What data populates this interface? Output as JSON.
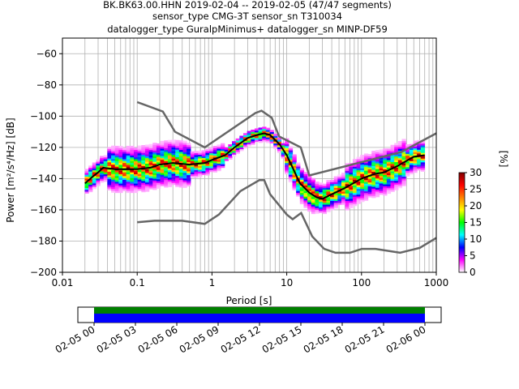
{
  "title_lines": [
    "BK.BK63.00.HHN   2019-02-04 -- 2019-02-05  (47/47 segments)",
    "sensor_type CMG-3T sensor_sn T310034",
    "datalogger_type GuralpMinimus+ datalogger_sn MINP-DF59"
  ],
  "chart_data": [
    {
      "type": "heatmap",
      "xlabel": "Period [s]",
      "ylabel": "Power [m²/s⁴/Hz] [dB]",
      "xscale": "log",
      "xlim": [
        0.01,
        1000
      ],
      "ylim": [
        -200,
        -50
      ],
      "x_ticks": [
        0.01,
        0.1,
        1,
        10,
        100,
        1000
      ],
      "x_tick_labels": [
        "0.01",
        "0.1",
        "1",
        "10",
        "100",
        "1000"
      ],
      "y_ticks": [
        -200,
        -180,
        -160,
        -140,
        -120,
        -100,
        -80,
        -60
      ],
      "y_tick_labels": [
        "−200",
        "−180",
        "−160",
        "−140",
        "−120",
        "−100",
        "−80",
        "−60"
      ],
      "grid": true,
      "noise_model_high": [
        [
          0.1,
          -91
        ],
        [
          0.22,
          -97
        ],
        [
          0.32,
          -110
        ],
        [
          0.8,
          -120
        ],
        [
          3.8,
          -98
        ],
        [
          4.6,
          -96.5
        ],
        [
          6.3,
          -101
        ],
        [
          7.9,
          -113
        ],
        [
          15.4,
          -120
        ],
        [
          20,
          -138
        ],
        [
          340,
          -123
        ],
        [
          1000,
          -111
        ]
      ],
      "noise_model_low": [
        [
          0.1,
          -168
        ],
        [
          0.17,
          -167
        ],
        [
          0.4,
          -167
        ],
        [
          0.8,
          -169
        ],
        [
          1.24,
          -163
        ],
        [
          2.4,
          -148
        ],
        [
          4.3,
          -141
        ],
        [
          5,
          -141
        ],
        [
          6,
          -150
        ],
        [
          10,
          -163
        ],
        [
          12,
          -166
        ],
        [
          15.6,
          -162
        ],
        [
          21.9,
          -177
        ],
        [
          31.6,
          -185
        ],
        [
          45,
          -187.5
        ],
        [
          70,
          -187.5
        ],
        [
          101,
          -185
        ],
        [
          154,
          -185
        ],
        [
          328,
          -187.5
        ],
        [
          600,
          -184.4
        ],
        [
          1000,
          -178
        ]
      ],
      "mean_psd": [
        [
          0.02,
          -143
        ],
        [
          0.025,
          -139
        ],
        [
          0.03,
          -136
        ],
        [
          0.035,
          -133
        ],
        [
          0.05,
          -134
        ],
        [
          0.1,
          -134
        ],
        [
          0.15,
          -133
        ],
        [
          0.2,
          -131
        ],
        [
          0.3,
          -130
        ],
        [
          0.5,
          -131
        ],
        [
          0.8,
          -130
        ],
        [
          1,
          -128
        ],
        [
          1.5,
          -125
        ],
        [
          2,
          -120
        ],
        [
          3,
          -114
        ],
        [
          4,
          -112
        ],
        [
          5,
          -111
        ],
        [
          6,
          -112
        ],
        [
          8,
          -118
        ],
        [
          10,
          -125
        ],
        [
          12,
          -133
        ],
        [
          15,
          -143
        ],
        [
          20,
          -149
        ],
        [
          25,
          -152
        ],
        [
          30,
          -153
        ],
        [
          40,
          -150
        ],
        [
          60,
          -146
        ],
        [
          100,
          -140
        ],
        [
          150,
          -137
        ],
        [
          200,
          -136
        ],
        [
          300,
          -132
        ],
        [
          500,
          -126
        ],
        [
          700,
          -125
        ]
      ],
      "colorbar": {
        "label": "[%]",
        "min": 0,
        "max": 30,
        "ticks": [
          0,
          5,
          10,
          15,
          20,
          25,
          30
        ],
        "colormap": [
          "#ffffff",
          "#ff00ff",
          "#0000ff",
          "#00ffff",
          "#00ff00",
          "#ffff00",
          "#ff8000",
          "#ff0000",
          "#800000"
        ]
      }
    },
    {
      "type": "timeline",
      "x_tick_labels": [
        "02-05 00",
        "02-05 03",
        "02-05 06",
        "02-05 09",
        "02-05 12",
        "02-05 15",
        "02-05 18",
        "02-05 21",
        "02-06 00"
      ],
      "coverage_start": "02-05 00",
      "coverage_end": "02-06 00",
      "colors": {
        "available": "#008000",
        "used": "#0000ff"
      }
    }
  ]
}
